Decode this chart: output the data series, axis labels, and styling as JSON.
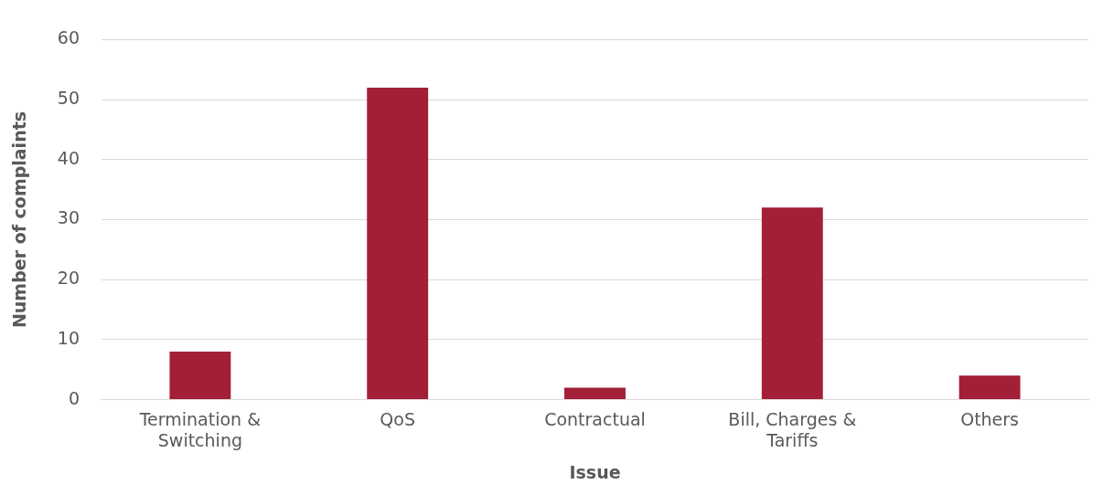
{
  "chart_data": {
    "type": "bar",
    "xlabel": "Issue",
    "ylabel": "Number of complaints",
    "categories": [
      "Termination & Switching",
      "QoS",
      "Contractual",
      "Bill, Charges & Tariffs",
      "Others"
    ],
    "values": [
      8,
      52,
      2,
      32,
      4
    ],
    "color": "#a31f37",
    "ylim": [
      0,
      60
    ],
    "yticks": [
      0,
      10,
      20,
      30,
      40,
      50,
      60
    ],
    "grid": "y",
    "legend": false
  }
}
